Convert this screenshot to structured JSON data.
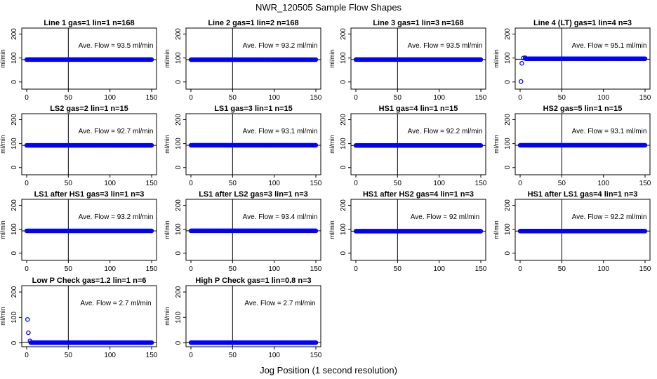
{
  "figure": {
    "title": "NWR_120505  Sample Flow Shapes",
    "xlabel": "Jog Position (1 second resolution)",
    "ylabel": "ml/min",
    "x_ticks": [
      0,
      50,
      100,
      150
    ],
    "y_ticks": [
      0,
      100,
      200
    ],
    "point_color": "#0000ff",
    "vline_x": 50
  },
  "chart_data": [
    {
      "type": "scatter",
      "title": "Line 1 gas=1 lin=1 n=168",
      "annotation": "Ave. Flow = 93.5  ml/min",
      "xlim": [
        0,
        150
      ],
      "ylim": [
        -30,
        225
      ],
      "ylabel": "ml/min",
      "hline": 93.5,
      "shape": "flat",
      "level": 93.5
    },
    {
      "type": "scatter",
      "title": "Line 2 gas=1 lin=2 n=168",
      "annotation": "Ave. Flow = 93.2  ml/min",
      "xlim": [
        0,
        150
      ],
      "ylim": [
        -30,
        225
      ],
      "ylabel": "ml/min",
      "hline": 93.2,
      "shape": "flat",
      "level": 93.2
    },
    {
      "type": "scatter",
      "title": "Line 3 gas=1 lin=3 n=168",
      "annotation": "Ave. Flow = 93.5  ml/min",
      "xlim": [
        0,
        150
      ],
      "ylim": [
        -30,
        225
      ],
      "ylabel": "ml/min",
      "hline": 93.5,
      "shape": "flat",
      "level": 93.5
    },
    {
      "type": "scatter",
      "title": "Line 4 (LT) gas=1 lin=4 n=3",
      "annotation": "Ave. Flow = 95.1  ml/min",
      "xlim": [
        0,
        150
      ],
      "ylim": [
        -30,
        225
      ],
      "ylabel": "ml/min",
      "hline": 95.1,
      "shape": "flat",
      "level": 97,
      "start_points": [
        [
          1,
          2
        ],
        [
          2,
          78
        ],
        [
          4,
          100
        ],
        [
          6,
          101
        ]
      ]
    },
    {
      "type": "scatter",
      "title": "LS2 gas=2 lin=1 n=15",
      "annotation": "Ave. Flow = 92.7  ml/min",
      "xlim": [
        0,
        150
      ],
      "ylim": [
        -30,
        225
      ],
      "ylabel": "ml/min",
      "hline": 92.7,
      "shape": "flat",
      "level": 92.7
    },
    {
      "type": "scatter",
      "title": "LS1 gas=3 lin=1 n=15",
      "annotation": "Ave. Flow = 93.1  ml/min",
      "xlim": [
        0,
        150
      ],
      "ylim": [
        -30,
        225
      ],
      "ylabel": "ml/min",
      "hline": 93.1,
      "shape": "flat",
      "level": 93.1
    },
    {
      "type": "scatter",
      "title": "HS1 gas=4 lin=1 n=15",
      "annotation": "Ave. Flow = 92.2  ml/min",
      "xlim": [
        0,
        150
      ],
      "ylim": [
        -30,
        225
      ],
      "ylabel": "ml/min",
      "hline": 92.2,
      "shape": "flat",
      "level": 92.2
    },
    {
      "type": "scatter",
      "title": "HS2 gas=5 lin=1 n=15",
      "annotation": "Ave. Flow = 93.1  ml/min",
      "xlim": [
        0,
        150
      ],
      "ylim": [
        -30,
        225
      ],
      "ylabel": "ml/min",
      "hline": 93.1,
      "shape": "flat",
      "level": 93.1
    },
    {
      "type": "scatter",
      "title": "LS1 after HS1 gas=3 lin=1 n=3",
      "annotation": "Ave. Flow = 93.2  ml/min",
      "xlim": [
        0,
        150
      ],
      "ylim": [
        -30,
        225
      ],
      "ylabel": "ml/min",
      "hline": 93.2,
      "shape": "flat",
      "level": 93.2
    },
    {
      "type": "scatter",
      "title": "LS1 after LS2 gas=3 lin=1 n=3",
      "annotation": "Ave. Flow = 93.4  ml/min",
      "xlim": [
        0,
        150
      ],
      "ylim": [
        -30,
        225
      ],
      "ylabel": "ml/min",
      "hline": 93.4,
      "shape": "flat",
      "level": 93.4
    },
    {
      "type": "scatter",
      "title": "HS1 after HS2 gas=4 lin=1 n=3",
      "annotation": "Ave. Flow = 92  ml/min",
      "xlim": [
        0,
        150
      ],
      "ylim": [
        -30,
        225
      ],
      "ylabel": "ml/min",
      "hline": 92,
      "shape": "flat",
      "level": 92
    },
    {
      "type": "scatter",
      "title": "HS1 after LS1 gas=4 lin=1 n=3",
      "annotation": "Ave. Flow = 92.2  ml/min",
      "xlim": [
        0,
        150
      ],
      "ylim": [
        -30,
        225
      ],
      "ylabel": "ml/min",
      "hline": 92.2,
      "shape": "flat",
      "level": 92.2
    },
    {
      "type": "scatter",
      "title": "Low P Check gas=1.2 lin=1 n=6",
      "annotation": "Ave. Flow = 2.7  ml/min",
      "xlim": [
        0,
        150
      ],
      "ylim": [
        -15,
        225
      ],
      "ylabel": "ml/min",
      "hline": 2.7,
      "shape": "flat",
      "level": 1,
      "start_points": [
        [
          1,
          92
        ],
        [
          2,
          40
        ],
        [
          4,
          8
        ]
      ]
    },
    {
      "type": "scatter",
      "title": "High P Check gas=1 lin=0.8 n=3",
      "annotation": "Ave. Flow = 2.7  ml/min",
      "xlim": [
        0,
        150
      ],
      "ylim": [
        -15,
        225
      ],
      "ylabel": "ml/min",
      "hline": 2.7,
      "shape": "flat",
      "level": 1
    }
  ]
}
